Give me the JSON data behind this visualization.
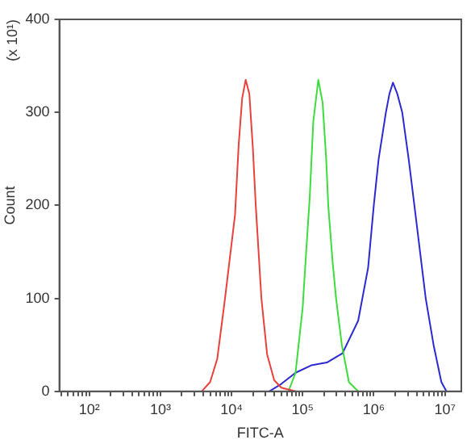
{
  "chart_data": {
    "type": "line",
    "xlabel": "FITC-A",
    "ylabel": "Count",
    "annotations": [
      "(x 10¹)"
    ],
    "log": "x",
    "grid": false,
    "legend": false,
    "marker": "none",
    "line_style": "solid",
    "xlim": [
      38,
      17000000
    ],
    "ylim": [
      0,
      400
    ],
    "xticks": [
      {
        "value": 40,
        "label": null
      },
      {
        "value": 50,
        "label": null
      },
      {
        "value": 60,
        "label": null
      },
      {
        "value": 70,
        "label": null
      },
      {
        "value": 80,
        "label": null
      },
      {
        "value": 90,
        "label": null
      },
      {
        "value": 100,
        "label": "10²"
      },
      {
        "value": 200,
        "label": null
      },
      {
        "value": 300,
        "label": null
      },
      {
        "value": 400,
        "label": null
      },
      {
        "value": 500,
        "label": null
      },
      {
        "value": 600,
        "label": null
      },
      {
        "value": 700,
        "label": null
      },
      {
        "value": 800,
        "label": null
      },
      {
        "value": 900,
        "label": null
      },
      {
        "value": 1000,
        "label": "10³"
      },
      {
        "value": 2000,
        "label": null
      },
      {
        "value": 3000,
        "label": null
      },
      {
        "value": 4000,
        "label": null
      },
      {
        "value": 5000,
        "label": null
      },
      {
        "value": 6000,
        "label": null
      },
      {
        "value": 7000,
        "label": null
      },
      {
        "value": 8000,
        "label": null
      },
      {
        "value": 9000,
        "label": null
      },
      {
        "value": 10000,
        "label": "10⁴"
      },
      {
        "value": 20000,
        "label": null
      },
      {
        "value": 30000,
        "label": null
      },
      {
        "value": 40000,
        "label": null
      },
      {
        "value": 50000,
        "label": null
      },
      {
        "value": 60000,
        "label": null
      },
      {
        "value": 70000,
        "label": null
      },
      {
        "value": 80000,
        "label": null
      },
      {
        "value": 90000,
        "label": null
      },
      {
        "value": 100000,
        "label": "10⁵"
      },
      {
        "value": 200000,
        "label": null
      },
      {
        "value": 300000,
        "label": null
      },
      {
        "value": 400000,
        "label": null
      },
      {
        "value": 500000,
        "label": null
      },
      {
        "value": 600000,
        "label": null
      },
      {
        "value": 700000,
        "label": null
      },
      {
        "value": 800000,
        "label": null
      },
      {
        "value": 900000,
        "label": null
      },
      {
        "value": 1000000,
        "label": "10⁶"
      },
      {
        "value": 2000000,
        "label": null
      },
      {
        "value": 3000000,
        "label": null
      },
      {
        "value": 4000000,
        "label": null
      },
      {
        "value": 5000000,
        "label": null
      },
      {
        "value": 6000000,
        "label": null
      },
      {
        "value": 7000000,
        "label": null
      },
      {
        "value": 8000000,
        "label": null
      },
      {
        "value": 9000000,
        "label": null
      },
      {
        "value": 10000000,
        "label": "10⁷"
      }
    ],
    "yticks": [
      0,
      100,
      200,
      300,
      400
    ],
    "series": [
      {
        "color": "#e8403a",
        "x": [
          3800,
          5000,
          6300,
          8100,
          11200,
          12600,
          14100,
          15800,
          17800,
          20000,
          21900,
          26300,
          31600,
          39800,
          50100,
          79400
        ],
        "values": [
          0,
          10,
          35,
          100,
          190,
          265,
          315,
          335,
          320,
          260,
          200,
          100,
          40,
          12,
          4,
          0
        ]
      },
      {
        "color": "#3ddc3d",
        "x": [
          63100,
          79400,
          100000,
          112000,
          126000,
          141000,
          166000,
          191000,
          214000,
          229000,
          263000,
          295000,
          355000,
          447000,
          603000
        ],
        "values": [
          0,
          20,
          90,
          150,
          210,
          290,
          335,
          310,
          250,
          200,
          140,
          100,
          50,
          10,
          0
        ]
      },
      {
        "color": "#2a2ad0",
        "x": [
          33900,
          50100,
          79400,
          132000,
          219000,
          363000,
          603000,
          832000,
          1000000,
          1170000,
          1480000,
          1660000,
          1860000,
          2140000,
          2510000,
          3090000,
          3720000,
          5370000,
          6920000,
          8910000,
          10500000
        ],
        "values": [
          0,
          8,
          20,
          28,
          31,
          41,
          76,
          133,
          200,
          250,
          300,
          320,
          332,
          320,
          300,
          250,
          200,
          100,
          50,
          10,
          0
        ]
      }
    ]
  }
}
